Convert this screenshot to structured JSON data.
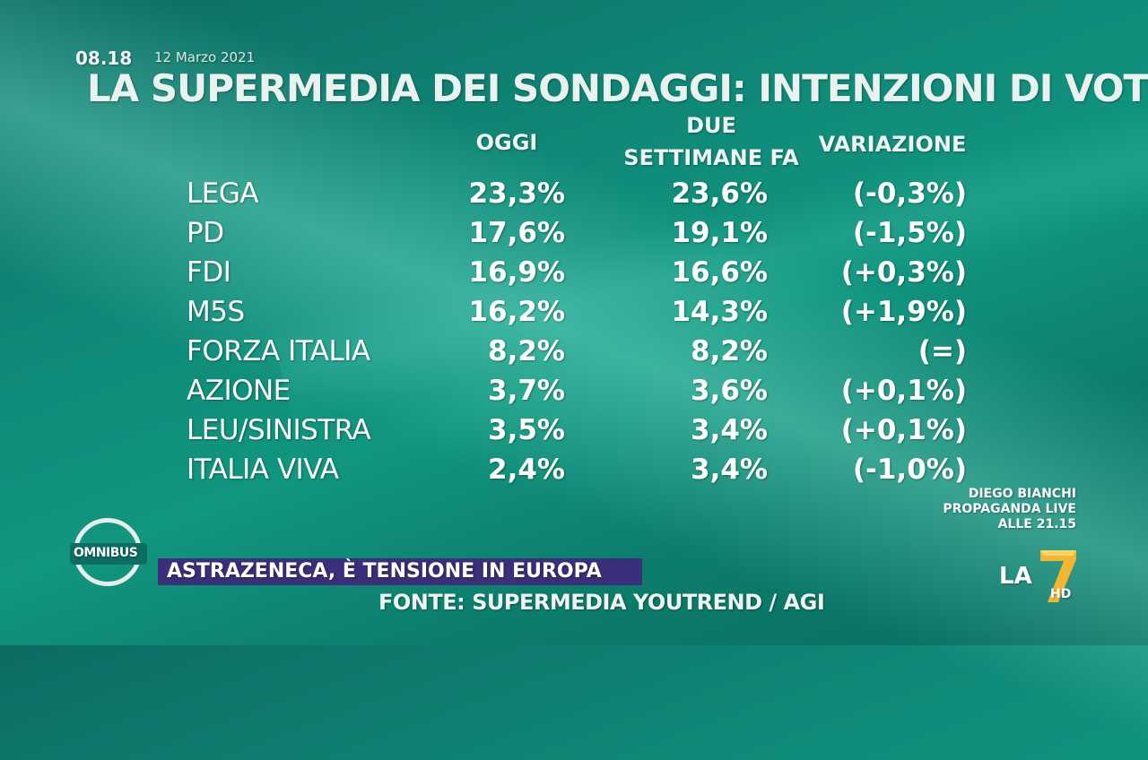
{
  "header": {
    "time": "08.18",
    "date": "12 Marzo 2021",
    "title": "LA SUPERMEDIA DEI SONDAGGI: INTENZIONI DI VOTO"
  },
  "table": {
    "columns": {
      "oggi": "OGGI",
      "due_line1": "DUE",
      "due_line2": "SETTIMANE FA",
      "variazione": "VARIAZIONE"
    },
    "rows": [
      {
        "party": "LEGA",
        "oggi": "23,3%",
        "due_settimane_fa": "23,6%",
        "variazione": "(-0,3%)"
      },
      {
        "party": "PD",
        "oggi": "17,6%",
        "due_settimane_fa": "19,1%",
        "variazione": "(-1,5%)"
      },
      {
        "party": "FDI",
        "oggi": "16,9%",
        "due_settimane_fa": "16,6%",
        "variazione": "(+0,3%)"
      },
      {
        "party": "M5S",
        "oggi": "16,2%",
        "due_settimane_fa": "14,3%",
        "variazione": "(+1,9%)"
      },
      {
        "party": "FORZA ITALIA",
        "oggi": "8,2%",
        "due_settimane_fa": "8,2%",
        "variazione": "(=)"
      },
      {
        "party": "AZIONE",
        "oggi": "3,7%",
        "due_settimane_fa": "3,6%",
        "variazione": "(+0,1%)"
      },
      {
        "party": "LEU/SINISTRA",
        "oggi": "3,5%",
        "due_settimane_fa": "3,4%",
        "variazione": "(+0,1%)"
      },
      {
        "party": "ITALIA VIVA",
        "oggi": "2,4%",
        "due_settimane_fa": "3,4%",
        "variazione": "(-1,0%)"
      }
    ]
  },
  "program": {
    "logo_text": "OMNIBUS",
    "ticker": "ASTRAZENECA, È TENSIONE IN EUROPA",
    "source": "FONTE: SUPERMEDIA YOUTREND / AGI"
  },
  "promo": {
    "line1": "DIEGO BIANCHI",
    "line2": "PROPAGANDA LIVE",
    "line3": "ALLE 21.15"
  },
  "channel": {
    "name": "LA",
    "hd": "HD",
    "logo_icon": "la7-logo-icon",
    "colors": {
      "accent": "#f2b632",
      "ticker_bg": "#3a2f7a"
    }
  }
}
